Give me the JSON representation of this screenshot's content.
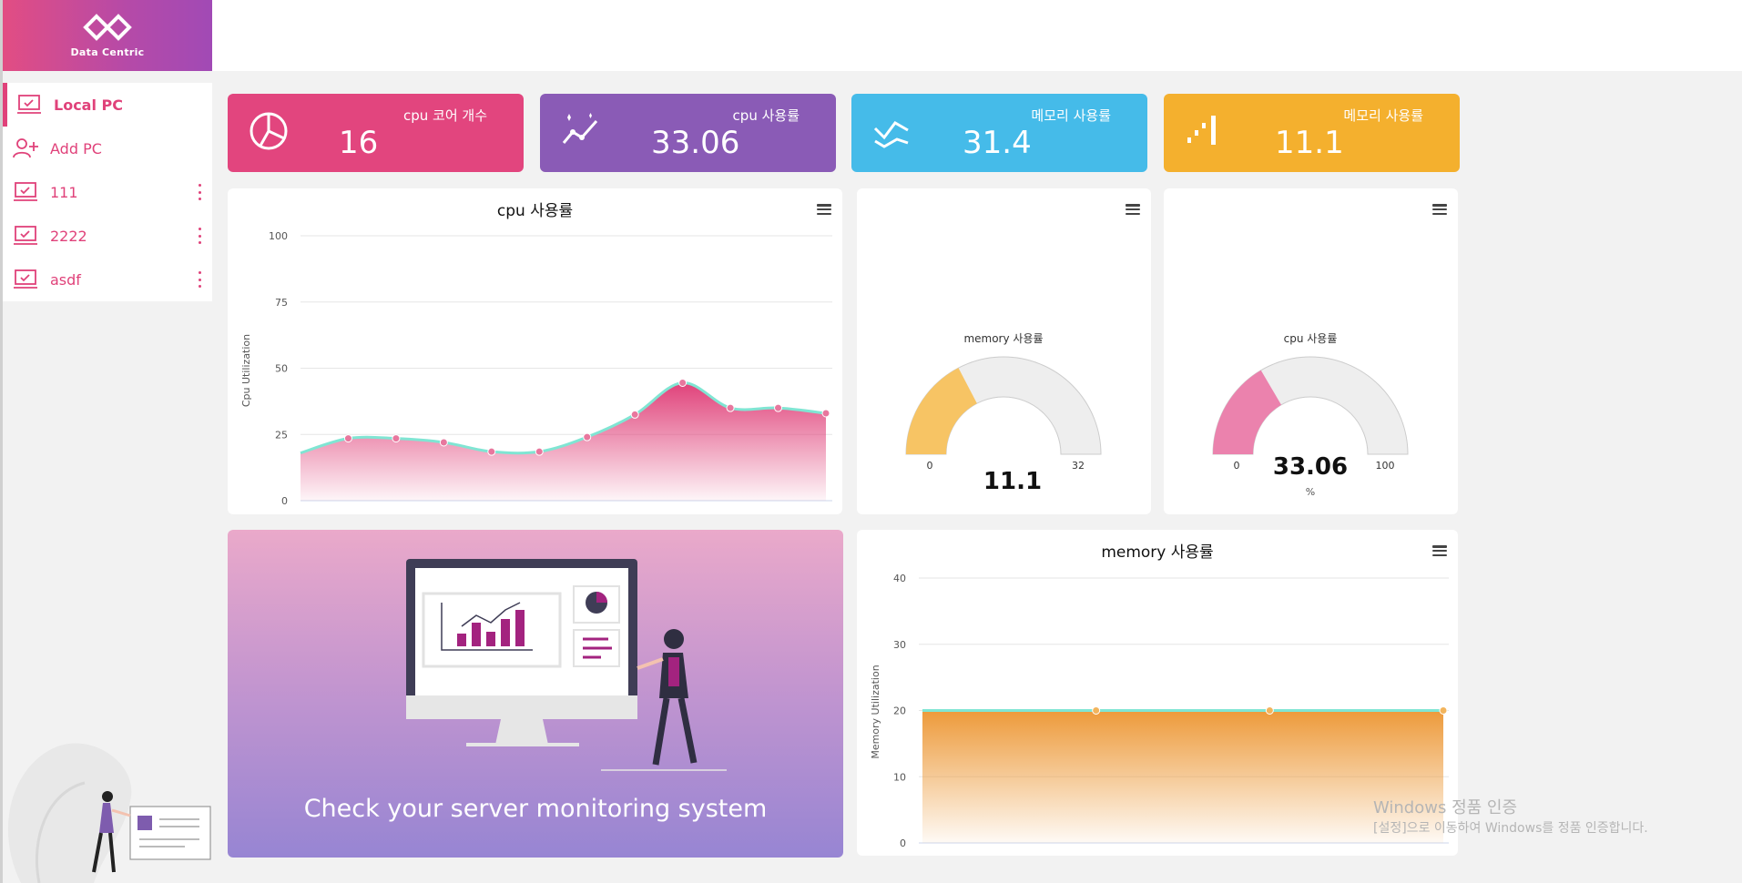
{
  "app": {
    "logo_text": "Data Centric"
  },
  "sidebar": {
    "items": [
      {
        "label": "Local PC",
        "active": true,
        "icon": "laptop-check-icon"
      },
      {
        "label": "Add PC",
        "icon": "add-user-icon"
      },
      {
        "label": "111",
        "icon": "laptop-check-icon",
        "menu": true
      },
      {
        "label": "2222",
        "icon": "laptop-check-icon",
        "menu": true
      },
      {
        "label": "asdf",
        "icon": "laptop-check-icon",
        "menu": true
      }
    ]
  },
  "stats": [
    {
      "label": "cpu 코어 개수",
      "value": "16",
      "color": "#e2457e",
      "icon": "pie-chart-icon"
    },
    {
      "label": "cpu 사용률",
      "value": "33.06",
      "color": "#8a5bb6",
      "icon": "trend-line-icon"
    },
    {
      "label": "메모리 사용률",
      "value": "31.4",
      "color": "#45bbe9",
      "icon": "wave-line-icon"
    },
    {
      "label": "메모리 사용률",
      "value": "11.1",
      "color": "#f4b02e",
      "icon": "signal-bars-icon"
    }
  ],
  "cpu_chart": {
    "chart_data": {
      "type": "area",
      "title": "cpu 사용률",
      "xlabel": "",
      "ylabel": "Cpu Utilization",
      "ylim": [
        0,
        100
      ],
      "yticks": [
        0,
        25,
        50,
        75,
        100
      ],
      "series": [
        {
          "values": [
            18,
            23.5,
            23.5,
            22,
            18.5,
            18.5,
            24,
            32.5,
            44.5,
            35,
            35,
            33
          ]
        }
      ],
      "grid": true
    }
  },
  "memory_gauge": {
    "chart_data": {
      "type": "gauge",
      "title": "memory 사용률",
      "value": 11.1,
      "value_label": "11.1",
      "min": 0,
      "max": 32,
      "min_label": "0",
      "max_label": "32",
      "fill_color": "#f7c464"
    }
  },
  "cpu_gauge": {
    "chart_data": {
      "type": "gauge",
      "title": "cpu 사용률",
      "value": 33.06,
      "value_label": "33.06",
      "unit": "%",
      "min": 0,
      "max": 100,
      "min_label": "0",
      "max_label": "100",
      "fill_color": "#eb82ad"
    }
  },
  "memory_chart": {
    "chart_data": {
      "type": "area",
      "title": "memory 사용률",
      "xlabel": "",
      "ylabel": "Memory Utilization",
      "ylim": [
        0,
        40
      ],
      "yticks": [
        0,
        10,
        20,
        30,
        40
      ],
      "series": [
        {
          "values": [
            20,
            20,
            20,
            20
          ]
        }
      ],
      "grid": true
    }
  },
  "banner": {
    "text": "Check your server monitoring system"
  },
  "watermark": {
    "title": "Windows 정품 인증",
    "subtitle": "[설정]으로 이동하여 Windows를 정품 인증합니다."
  }
}
